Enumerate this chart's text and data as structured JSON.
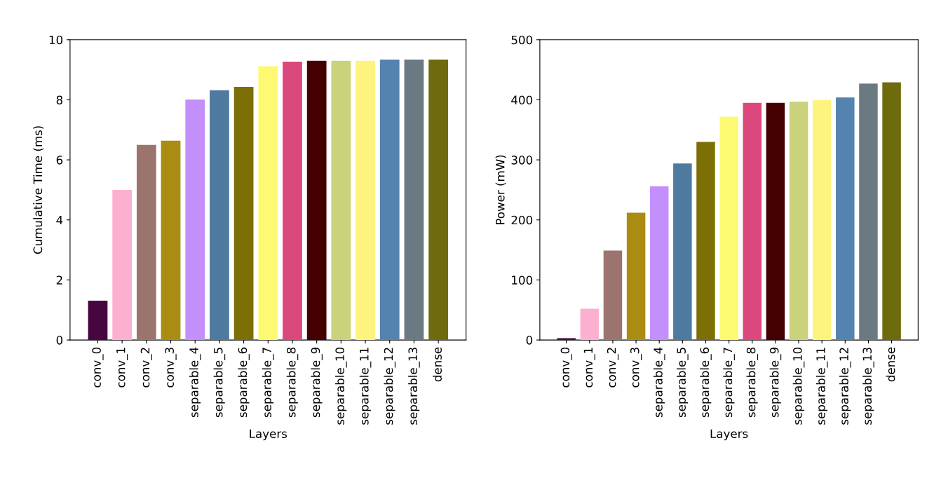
{
  "chart_data": [
    {
      "type": "bar",
      "xlabel": "Layers",
      "ylabel": "Cumulative Time (ms)",
      "categories": [
        "conv_0",
        "conv_1",
        "conv_2",
        "conv_3",
        "separable_4",
        "separable_5",
        "separable_6",
        "separable_7",
        "separable_8",
        "separable_9",
        "separable_10",
        "separable_11",
        "separable_12",
        "separable_13",
        "dense"
      ],
      "values": [
        1.31,
        5.0,
        6.5,
        6.64,
        8.01,
        8.32,
        8.43,
        9.12,
        9.27,
        9.3,
        9.3,
        9.3,
        9.34,
        9.34,
        9.34
      ],
      "colors": [
        "#46063f",
        "#fcb0d0",
        "#9b756d",
        "#ab8c12",
        "#c38ffb",
        "#4f7a9f",
        "#7b6f05",
        "#fdf972",
        "#da487e",
        "#440000",
        "#cbd27c",
        "#fdf47f",
        "#5483b0",
        "#6b7a82",
        "#6e6b0f"
      ],
      "ylim": [
        0,
        10
      ],
      "yticks": [
        0,
        2,
        4,
        6,
        8,
        10
      ],
      "grid": false
    },
    {
      "type": "bar",
      "xlabel": "Layers",
      "ylabel": "Power (mW)",
      "categories": [
        "conv_0",
        "conv_1",
        "conv_2",
        "conv_3",
        "separable_4",
        "separable_5",
        "separable_6",
        "separable_7",
        "separable_8",
        "separable_9",
        "separable_10",
        "separable_11",
        "separable_12",
        "separable_13",
        "dense"
      ],
      "values": [
        3,
        52,
        149,
        212,
        256,
        294,
        330,
        372,
        395,
        395,
        397,
        400,
        404,
        427,
        429
      ],
      "colors": [
        "#46063f",
        "#fcb0d0",
        "#9b756d",
        "#ab8c12",
        "#c38ffb",
        "#4f7a9f",
        "#7b6f05",
        "#fdf972",
        "#da487e",
        "#440000",
        "#cbd27c",
        "#fdf47f",
        "#5483b0",
        "#6b7a82",
        "#6e6b0f"
      ],
      "ylim": [
        0,
        500
      ],
      "yticks": [
        0,
        100,
        200,
        300,
        400,
        500
      ],
      "grid": false
    }
  ]
}
